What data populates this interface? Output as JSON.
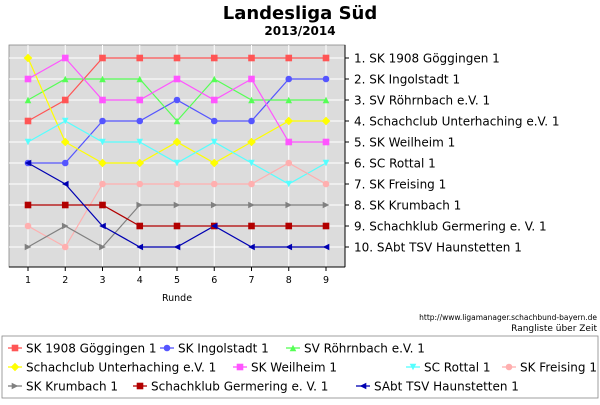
{
  "chart_data": {
    "type": "line",
    "title": "Landesliga Süd",
    "subtitle": "2013/2014",
    "xlabel": "Runde",
    "ylabel": "",
    "x": [
      1,
      2,
      3,
      4,
      5,
      6,
      7,
      8,
      9
    ],
    "ylim": [
      1,
      10
    ],
    "y_inverted": true,
    "grid": true,
    "y_tick_labels": [
      "1. SK 1908 Göggingen 1",
      "2. SK Ingolstadt 1",
      "3. SV Röhrnbach e.V. 1",
      "4. Schachclub Unterhaching e.V. 1",
      "5. SK Weilheim 1",
      "6. SC Rottal 1",
      "7. SK Freising 1",
      "8. SK Krumbach 1",
      "9. Schachklub Germering e. V. 1",
      "10. SAbt TSV Haunstetten 1"
    ],
    "series": [
      {
        "name": "SK 1908 Göggingen 1",
        "color": "#ff5555",
        "marker": "square",
        "values": [
          4,
          3,
          1,
          1,
          1,
          1,
          1,
          1,
          1
        ]
      },
      {
        "name": "SK Ingolstadt 1",
        "color": "#5555ff",
        "marker": "circle",
        "values": [
          6,
          6,
          4,
          4,
          3,
          4,
          4,
          2,
          2
        ]
      },
      {
        "name": "SV Röhrnbach e.V. 1",
        "color": "#55ff55",
        "marker": "triangle-up",
        "values": [
          3,
          2,
          2,
          2,
          4,
          2,
          3,
          3,
          3
        ]
      },
      {
        "name": "Schachclub Unterhaching e.V. 1",
        "color": "#ffff00",
        "marker": "diamond",
        "values": [
          1,
          5,
          6,
          6,
          5,
          6,
          5,
          4,
          4
        ]
      },
      {
        "name": "SK Weilheim 1",
        "color": "#ff55ff",
        "marker": "square",
        "values": [
          2,
          1,
          3,
          3,
          2,
          3,
          2,
          5,
          5
        ]
      },
      {
        "name": "SC Rottal 1",
        "color": "#55ffff",
        "marker": "triangle-down",
        "values": [
          5,
          4,
          5,
          5,
          6,
          5,
          6,
          7,
          6
        ]
      },
      {
        "name": "SK Freising 1",
        "color": "#ffafaf",
        "marker": "circle",
        "values": [
          9,
          10,
          7,
          7,
          7,
          7,
          7,
          6,
          7
        ]
      },
      {
        "name": "SK Krumbach 1",
        "color": "#808080",
        "marker": "triangle-right",
        "values": [
          10,
          9,
          10,
          8,
          8,
          8,
          8,
          8,
          8
        ]
      },
      {
        "name": "Schachklub Germering e. V. 1",
        "color": "#b20000",
        "marker": "square",
        "values": [
          8,
          8,
          8,
          9,
          9,
          9,
          9,
          9,
          9
        ]
      },
      {
        "name": "SAbt TSV Haunstetten 1",
        "color": "#0000b2",
        "marker": "triangle-left",
        "values": [
          6,
          7,
          9,
          10,
          10,
          9,
          10,
          10,
          10
        ]
      }
    ],
    "legend_placement": "bottom",
    "footer_url": "http://www.ligamanager.schachbund-bayern.de",
    "footer_caption": "Rangliste über Zeit"
  }
}
